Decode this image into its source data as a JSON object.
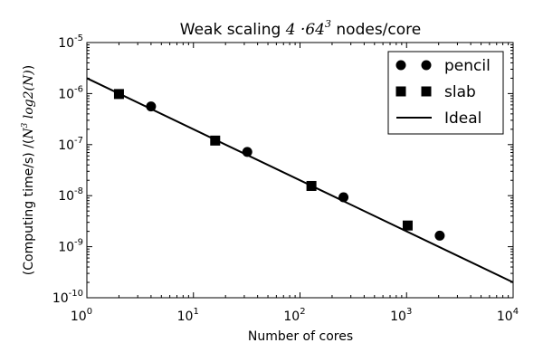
{
  "chart_data": {
    "type": "scatter",
    "title": {
      "prefix": "Weak scaling ",
      "math": "4 ·64",
      "math_exp": "3",
      "suffix": " nodes/core"
    },
    "xlabel": "Number of cores",
    "ylabel": {
      "prefix": "(Computing time/s) /(",
      "math": "N",
      "math_exp": "3",
      "math2": " log2(N)",
      "suffix": ")"
    },
    "xscale": "log",
    "yscale": "log",
    "xlim": [
      1,
      10000
    ],
    "ylim": [
      1e-10,
      1e-05
    ],
    "x_ticks": [
      {
        "value": 1,
        "base": "10",
        "exp": "0"
      },
      {
        "value": 10,
        "base": "10",
        "exp": "1"
      },
      {
        "value": 100,
        "base": "10",
        "exp": "2"
      },
      {
        "value": 1000,
        "base": "10",
        "exp": "3"
      },
      {
        "value": 10000,
        "base": "10",
        "exp": "4"
      }
    ],
    "y_ticks": [
      {
        "value": 1e-10,
        "base": "10",
        "exp": "-10"
      },
      {
        "value": 1e-09,
        "base": "10",
        "exp": "-9"
      },
      {
        "value": 1e-08,
        "base": "10",
        "exp": "-8"
      },
      {
        "value": 1e-07,
        "base": "10",
        "exp": "-7"
      },
      {
        "value": 1e-06,
        "base": "10",
        "exp": "-6"
      },
      {
        "value": 1e-05,
        "base": "10",
        "exp": "-5"
      }
    ],
    "grid": false,
    "legend_position": "top-right",
    "series": [
      {
        "name": "pencil",
        "marker": "circle",
        "color": "#000000",
        "points": [
          [
            4,
            5.6e-07
          ],
          [
            32,
            7.2e-08
          ],
          [
            256,
            9.3e-09
          ],
          [
            2048,
            1.65e-09
          ]
        ]
      },
      {
        "name": "slab",
        "marker": "square",
        "color": "#000000",
        "points": [
          [
            2,
            9.8e-07
          ],
          [
            16,
            1.2e-07
          ],
          [
            128,
            1.55e-08
          ],
          [
            1024,
            2.6e-09
          ]
        ]
      },
      {
        "name": "Ideal",
        "marker": "line",
        "color": "#000000",
        "points": [
          [
            1,
            2e-06
          ],
          [
            10000,
            2e-10
          ]
        ]
      }
    ]
  }
}
